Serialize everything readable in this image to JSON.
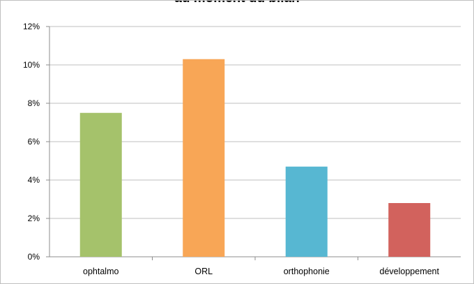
{
  "chart_data": {
    "type": "bar",
    "title": "au moment du bilan",
    "categories": [
      "ophtalmo",
      "ORL",
      "orthophonie",
      "développement"
    ],
    "values": [
      7.5,
      10.3,
      4.7,
      2.8
    ],
    "colors": [
      "#a5c26b",
      "#f8a656",
      "#57b7d2",
      "#d2625d"
    ],
    "yticks": [
      "0%",
      "2%",
      "4%",
      "6%",
      "8%",
      "10%",
      "12%"
    ],
    "ylim": [
      0,
      12
    ],
    "unit": "%",
    "grid": true,
    "legend": "none",
    "xlabel": "",
    "ylabel": ""
  }
}
